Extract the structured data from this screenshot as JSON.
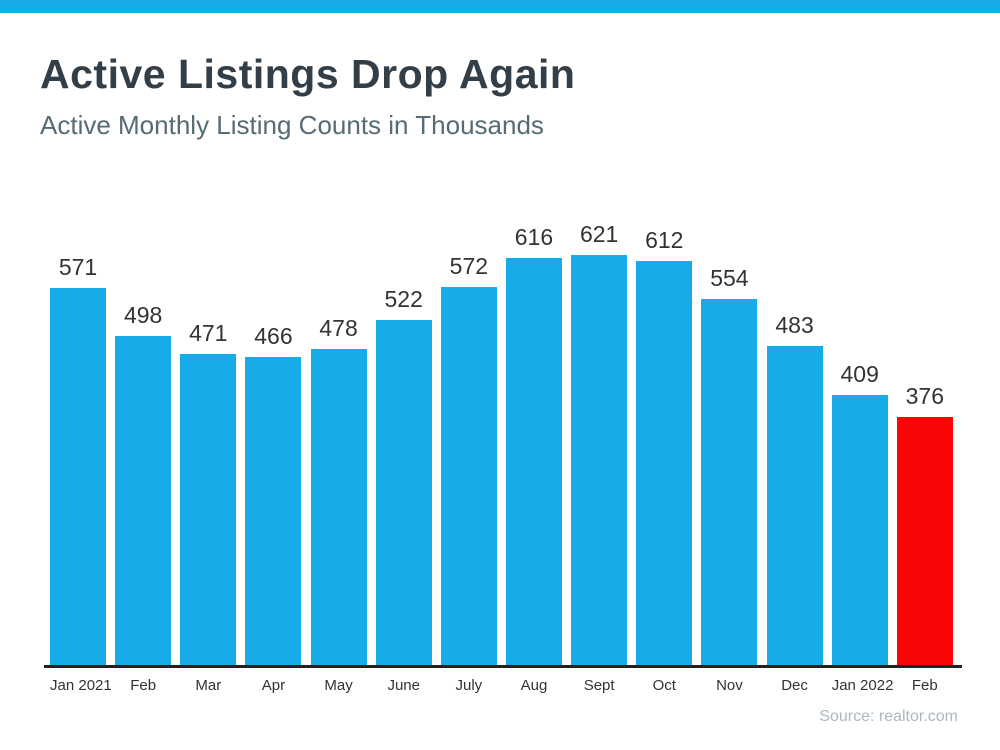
{
  "page": {
    "title": "Active Listings Drop Again",
    "subtitle": "Active Monthly Listing Counts in Thousands",
    "source": "Source: realtor.com"
  },
  "colors": {
    "accent_blue": "#17ABEA",
    "highlight_red": "#F90505",
    "axis_color": "#222222",
    "title_color": "#323E48",
    "subtitle_color": "#566B75",
    "label_color": "#333333",
    "source_color": "#ABB8C3"
  },
  "chart_data": {
    "type": "bar",
    "title": "Active Listings Drop Again",
    "subtitle": "Active Monthly Listing Counts in Thousands",
    "categories": [
      "Jan 2021",
      "Feb",
      "Mar",
      "Apr",
      "May",
      "June",
      "July",
      "Aug",
      "Sept",
      "Oct",
      "Nov",
      "Dec",
      "Jan 2022",
      "Feb"
    ],
    "values": [
      571,
      498,
      471,
      466,
      478,
      522,
      572,
      616,
      621,
      612,
      554,
      483,
      409,
      376
    ],
    "value_labels_shown": true,
    "highlight_index": 13,
    "bar_color": "#17ABEA",
    "highlight_color": "#F90505",
    "xlabel": "",
    "ylabel": "",
    "ylim": [
      0,
      621
    ],
    "grid": false,
    "legend": false,
    "source": "Source: realtor.com"
  }
}
